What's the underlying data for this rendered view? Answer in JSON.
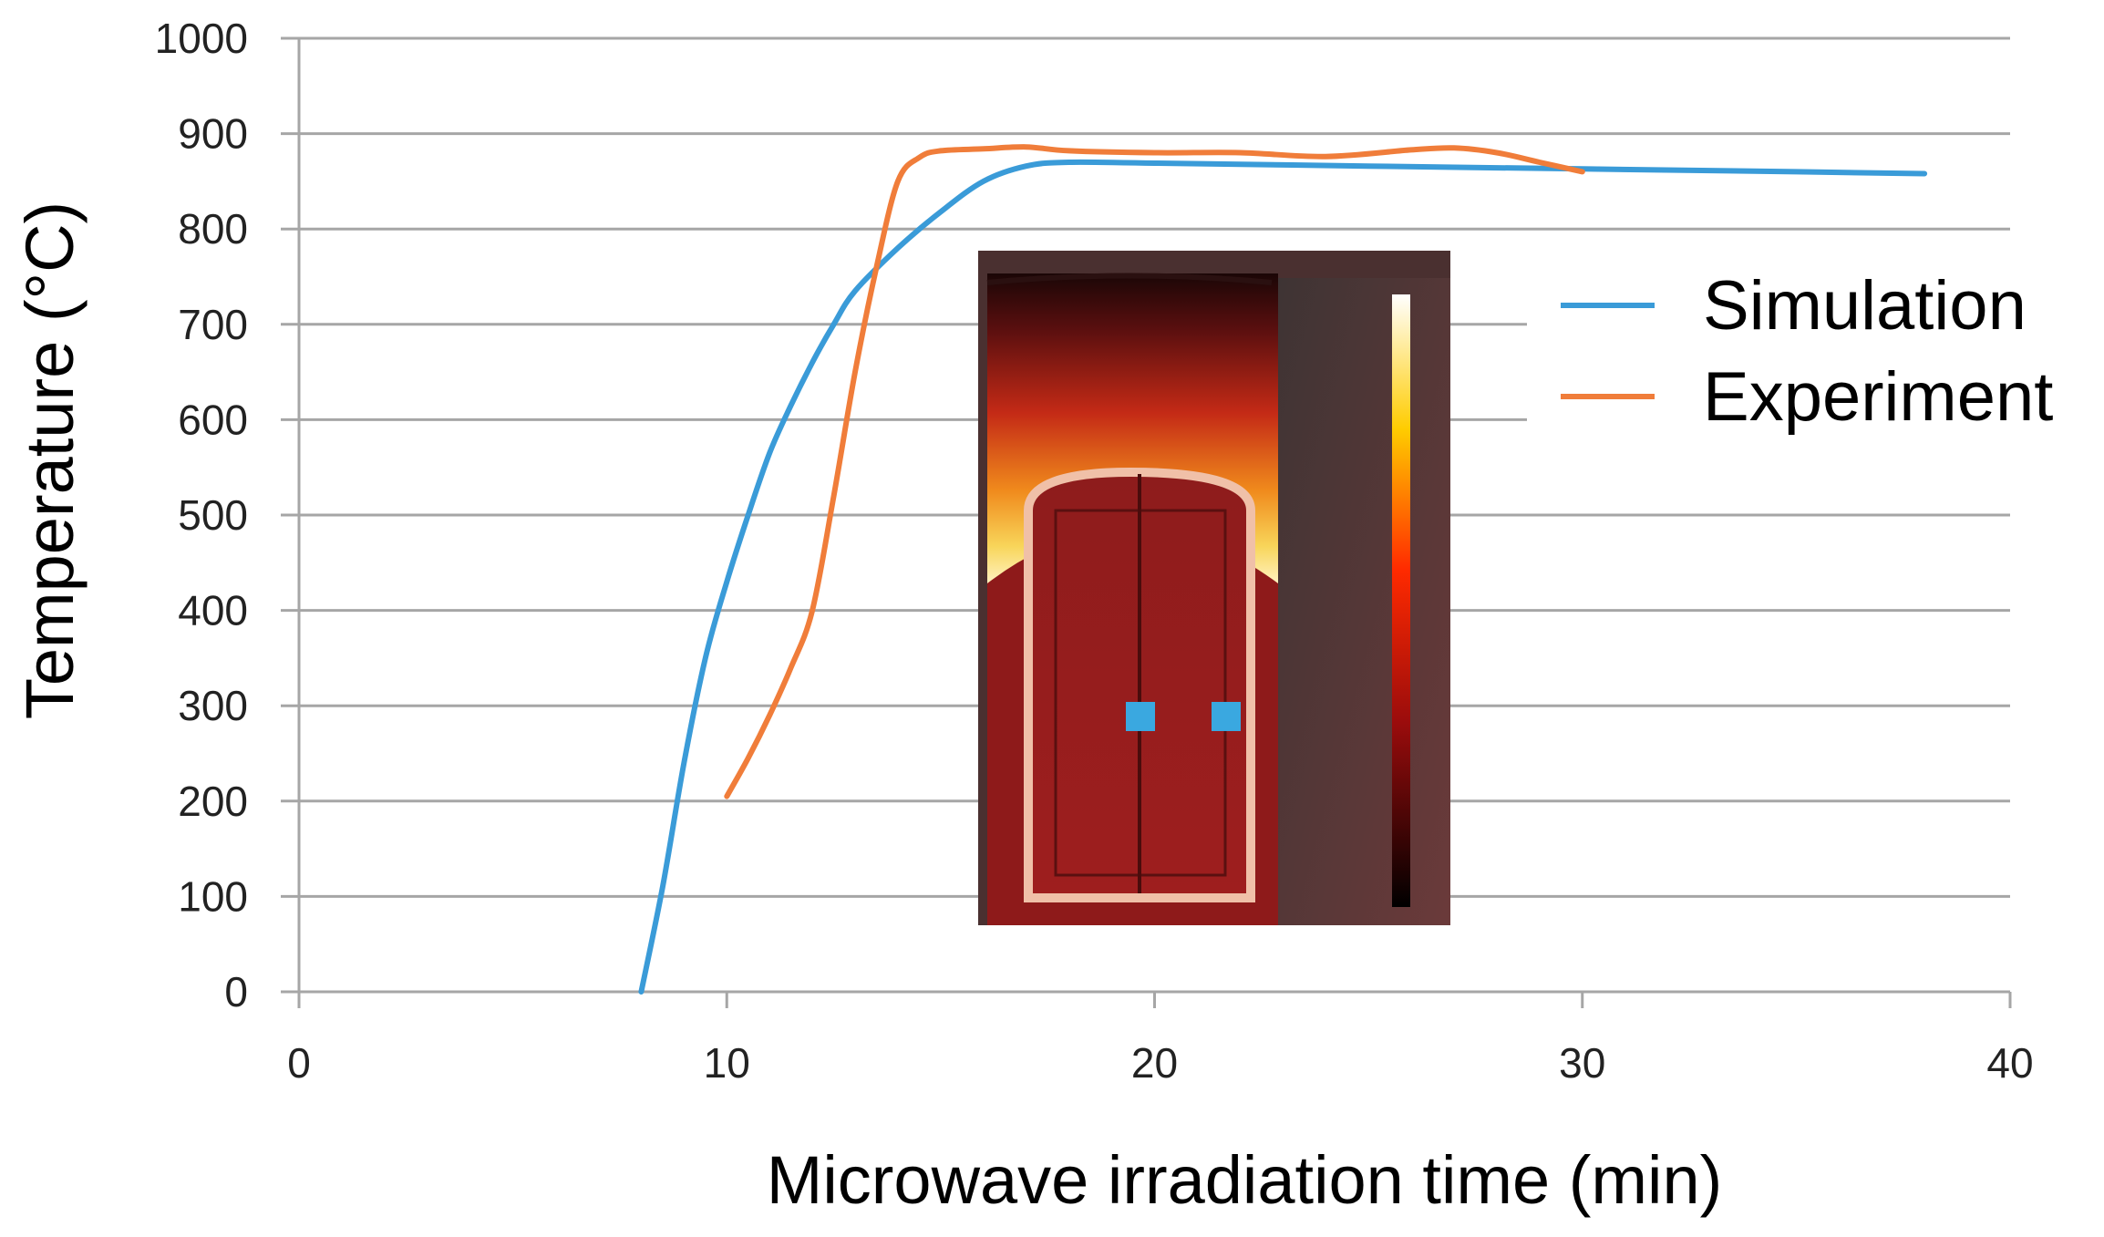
{
  "chart_data": {
    "type": "line",
    "title": "",
    "xlabel": "Microwave irradiation time (min)",
    "ylabel": "Temperature (°C)",
    "xlim": [
      0,
      40
    ],
    "ylim": [
      0,
      1000
    ],
    "x_ticks": [
      0,
      10,
      20,
      30,
      40
    ],
    "y_ticks": [
      0,
      100,
      200,
      300,
      400,
      500,
      600,
      700,
      800,
      900,
      1000
    ],
    "grid": "horizontal",
    "legend_position": "right",
    "series": [
      {
        "name": "Simulation",
        "color": "#3a9bd8",
        "x": [
          8,
          8.5,
          9,
          9.5,
          10,
          10.5,
          11,
          11.5,
          12,
          12.5,
          13,
          14,
          15,
          16,
          17,
          18,
          20,
          25,
          30,
          35,
          38
        ],
        "y": [
          0,
          110,
          240,
          350,
          430,
          500,
          565,
          615,
          660,
          700,
          735,
          780,
          818,
          850,
          866,
          870,
          869,
          866,
          863,
          860,
          858
        ]
      },
      {
        "name": "Experiment",
        "color": "#f07d3a",
        "x": [
          10,
          10.5,
          11,
          11.5,
          12,
          12.5,
          13,
          13.5,
          14,
          14.5,
          15,
          16,
          17,
          18,
          20,
          22,
          24,
          26,
          27,
          28,
          29,
          30
        ],
        "y": [
          205,
          245,
          290,
          340,
          400,
          520,
          650,
          760,
          850,
          875,
          882,
          884,
          886,
          882,
          880,
          880,
          876,
          883,
          885,
          880,
          870,
          860
        ]
      }
    ],
    "inset": {
      "description_icon": "heat-map-inset",
      "colors": [
        "#3b0a0a",
        "#a01a1a",
        "#e03a1a",
        "#f59a1a",
        "#f8e060",
        "#ffffff"
      ],
      "probe_color": "#3aa8e0"
    }
  }
}
